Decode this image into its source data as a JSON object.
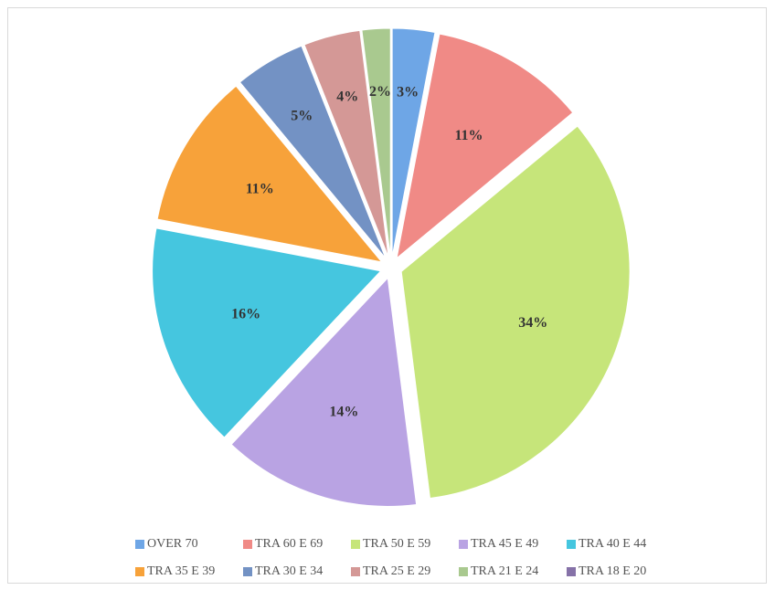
{
  "chart_data": {
    "type": "pie",
    "categories": [
      "OVER 70",
      "TRA 60 E 69",
      "TRA 50 E 59",
      "TRA 45 E 49",
      "TRA 40 E 44",
      "TRA 35 E 39",
      "TRA 30 E 34",
      "TRA 25 E 29",
      "TRA 21 E 24",
      "TRA 18 E 20"
    ],
    "values": [
      3,
      11,
      34,
      14,
      16,
      11,
      5,
      4,
      2,
      0
    ],
    "value_labels": [
      "3%",
      "11%",
      "34%",
      "14%",
      "16%",
      "11%",
      "5%",
      "4%",
      "2%",
      null
    ],
    "colors": [
      "#6ea6e6",
      "#f08a86",
      "#c6e57a",
      "#b9a3e3",
      "#45c6df",
      "#f7a23a",
      "#7392c4",
      "#d49896",
      "#a9c98f",
      "#8672a8"
    ],
    "legend": "bottom"
  }
}
